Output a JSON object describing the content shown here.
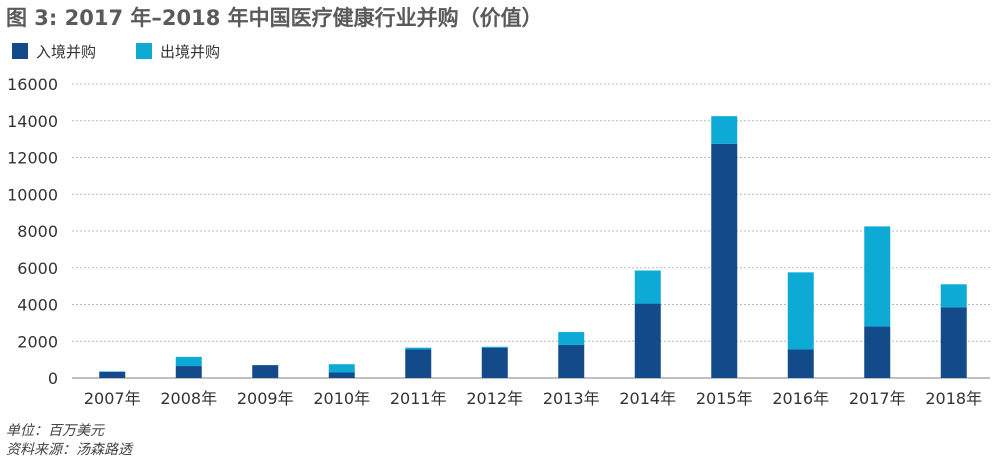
{
  "title": "图 3: 2017 年–2018 年中国医疗健康行业并购（价值）",
  "footnotes": {
    "unit": "单位：百万美元",
    "source": "资料来源：汤森路透"
  },
  "chart_data": {
    "type": "bar",
    "stacked": true,
    "categories": [
      "2007年",
      "2008年",
      "2009年",
      "2010年",
      "2011年",
      "2012年",
      "2013年",
      "2014年",
      "2015年",
      "2016年",
      "2017年",
      "2018年"
    ],
    "series": [
      {
        "name": "入境并购",
        "color": "#134a8a",
        "values": [
          330,
          650,
          700,
          300,
          1550,
          1650,
          1800,
          4050,
          12750,
          1550,
          2800,
          3850
        ]
      },
      {
        "name": "出境并购",
        "color": "#0eaad6",
        "values": [
          30,
          500,
          0,
          450,
          100,
          50,
          700,
          1800,
          1500,
          4200,
          5450,
          1250
        ]
      }
    ],
    "yticks": [
      "0",
      "2000",
      "4000",
      "6000",
      "8000",
      "10000",
      "12000",
      "14000",
      "16000"
    ],
    "ylim": [
      0,
      16000
    ],
    "grid": true,
    "legend": "top-left"
  }
}
